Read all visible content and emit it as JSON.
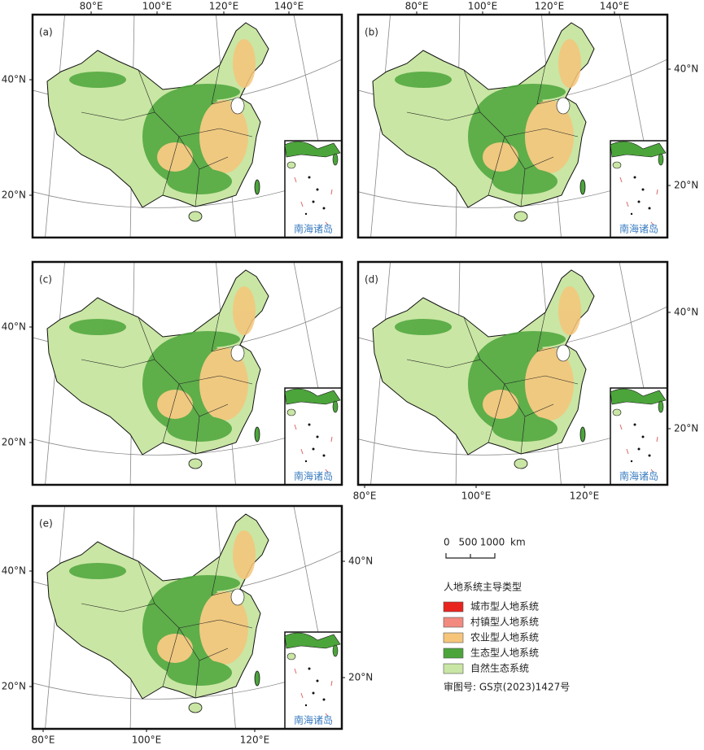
{
  "panels": [
    {
      "label": "(a)",
      "top_labels": [
        "80°E",
        "100°E",
        "120°E",
        "140°E"
      ],
      "left_labels": [
        "40°N",
        "20°N"
      ],
      "inset_label": "南海诸岛"
    },
    {
      "label": "(b)",
      "top_labels": [
        "80°E",
        "100°E",
        "120°E",
        "140°E"
      ],
      "right_labels": [
        "40°N",
        "20°N"
      ],
      "inset_label": "南海诸岛"
    },
    {
      "label": "(c)",
      "left_labels": [
        "40°N",
        "20°N"
      ],
      "inset_label": "南海诸岛"
    },
    {
      "label": "(d)",
      "right_labels": [
        "40°N",
        "20°N"
      ],
      "bottom_labels": [
        "80°E",
        "100°E",
        "120°E"
      ],
      "inset_label": "南海诸岛"
    },
    {
      "label": "(e)",
      "left_labels": [
        "40°N",
        "20°N"
      ],
      "right_labels": [
        "40°N",
        "20°N"
      ],
      "bottom_labels": [
        "80°E",
        "100°E",
        "120°E"
      ],
      "inset_label": "南海诸岛"
    }
  ],
  "scale_bar": {
    "ticks": [
      "0",
      "500",
      "1000"
    ],
    "unit": "km"
  },
  "legend": {
    "title": "人地系统主导类型",
    "items": [
      {
        "label": "城市型人地系统",
        "color": "#e8241f"
      },
      {
        "label": "村镇型人地系统",
        "color": "#f28a80"
      },
      {
        "label": "农业型人地系统",
        "color": "#f6c57a"
      },
      {
        "label": "生态型人地系统",
        "color": "#4ca53b"
      },
      {
        "label": "自然生态系统",
        "color": "#c9e6a4"
      }
    ]
  },
  "approval": "审图号: GS京(2023)1427号"
}
